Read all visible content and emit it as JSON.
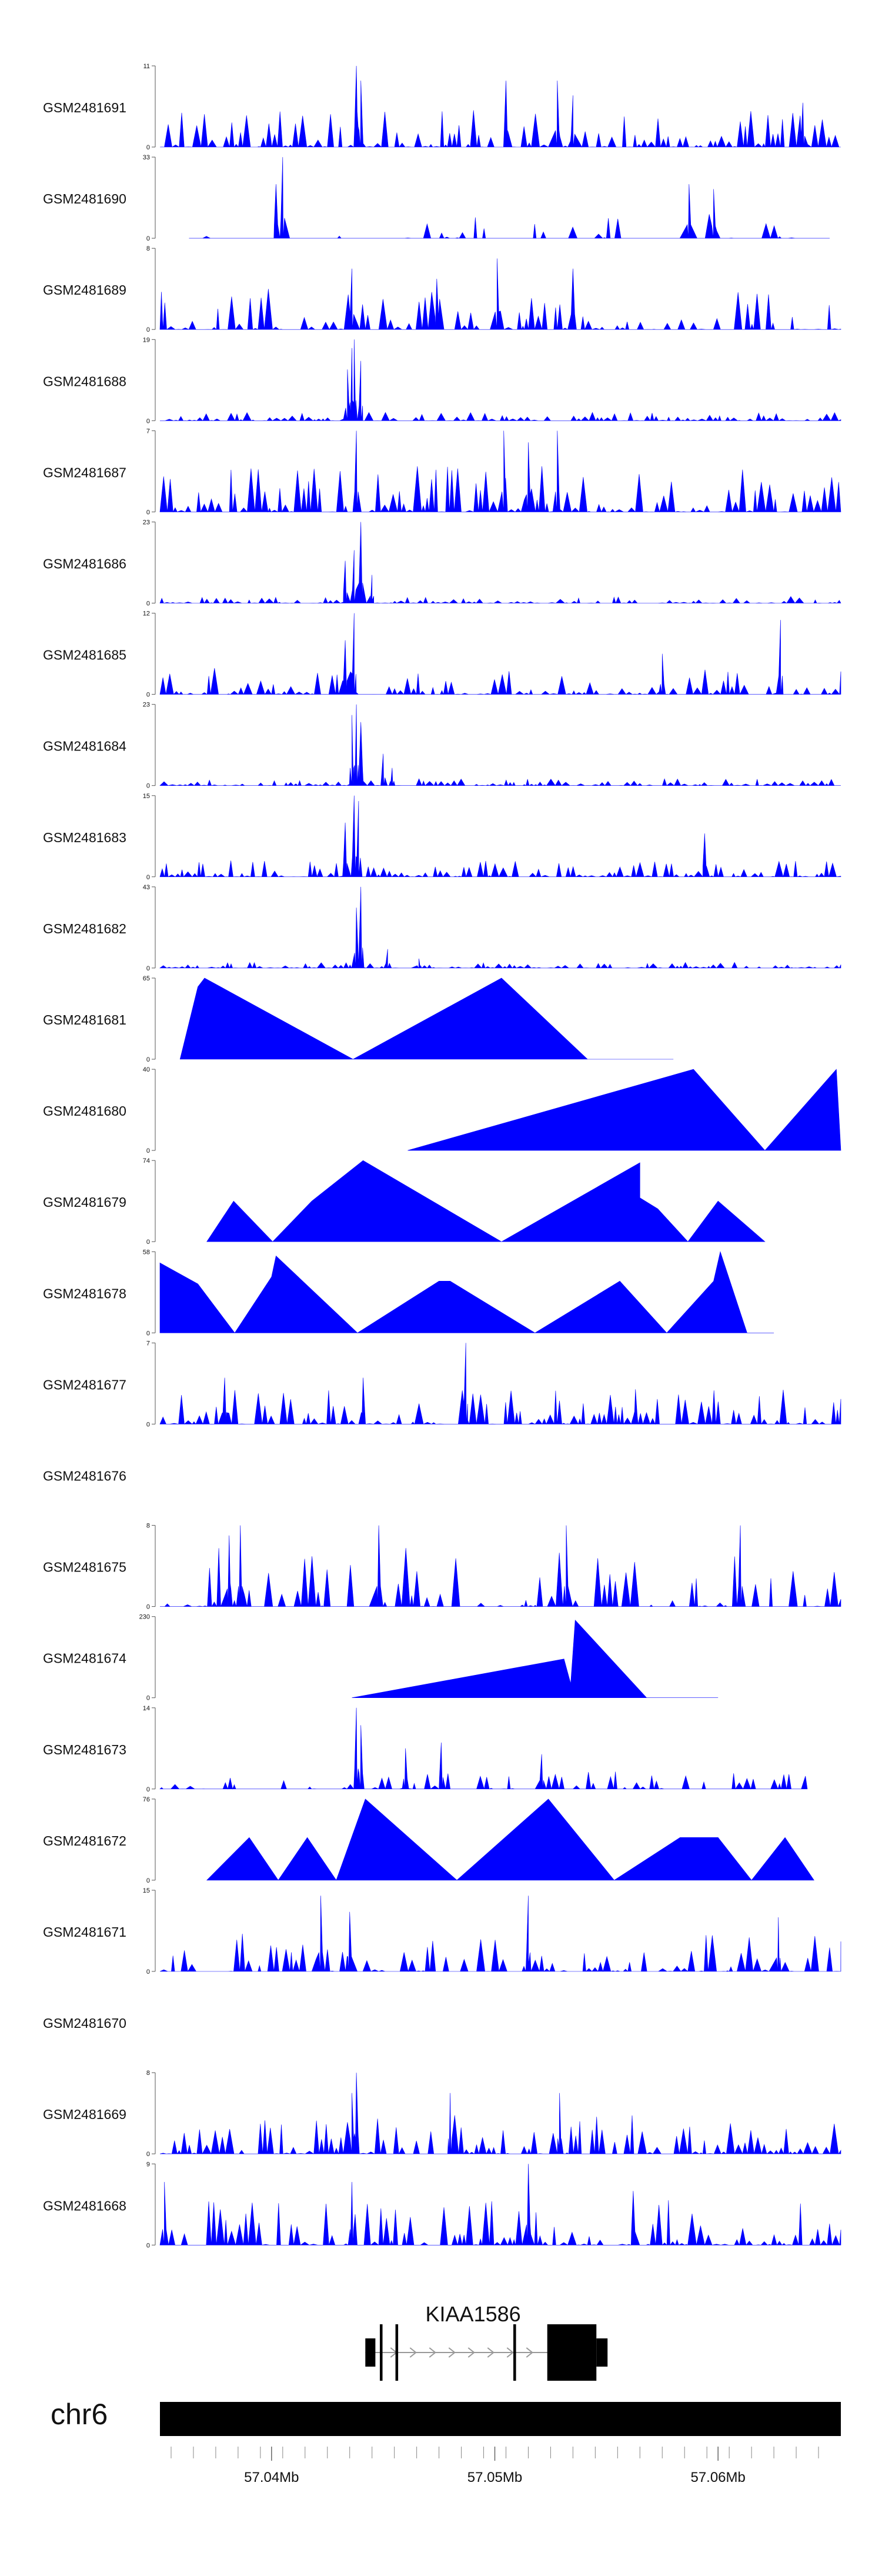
{
  "chart_data": {
    "type": "area",
    "title": "",
    "track_color": "#0000ff",
    "x_axis": {
      "chromosome": "chr6",
      "range_mb": [
        57.035,
        57.0655
      ],
      "ticks_mb": [
        57.0355,
        57.0365,
        57.0375,
        57.0385,
        57.0395,
        57.0405,
        57.0415,
        57.0425,
        57.0435,
        57.0445,
        57.0455,
        57.0465,
        57.0475,
        57.0485,
        57.0495,
        57.0505,
        57.0515,
        57.0525,
        57.0535,
        57.0545,
        57.0555,
        57.0565,
        57.0575,
        57.0585,
        57.0595,
        57.0605,
        57.0615,
        57.0625,
        57.0635,
        57.0645
      ],
      "tick_labels": [
        {
          "mb": 57.04,
          "text": "57.04Mb"
        },
        {
          "mb": 57.05,
          "text": "57.05Mb"
        },
        {
          "mb": 57.06,
          "text": "57.06Mb"
        }
      ]
    },
    "gene": {
      "name": "KIAA1586",
      "strand": "+",
      "start_mb": 57.0442,
      "end_mb": 57.0528,
      "exons": [
        {
          "start": 57.0442,
          "end": 57.04465,
          "tall": false
        },
        {
          "start": 57.04485,
          "end": 57.04497,
          "tall": true
        },
        {
          "start": 57.04555,
          "end": 57.04567,
          "tall": true
        },
        {
          "start": 57.05083,
          "end": 57.05095,
          "tall": true
        },
        {
          "start": 57.05235,
          "end": 57.05455,
          "tall": true
        },
        {
          "start": 57.05455,
          "end": 57.05505,
          "tall": false
        }
      ]
    },
    "tracks": [
      {
        "name": "GSM2481691",
        "ymax": 11,
        "peaks": [
          [
            57.0438,
            11
          ],
          [
            57.044,
            9
          ],
          [
            57.0505,
            9
          ],
          [
            57.0528,
            9
          ],
          [
            57.0535,
            7
          ],
          [
            57.0638,
            6
          ]
        ],
        "noise": 5,
        "density": 0.9,
        "start": 57.035,
        "end": 57.0655
      },
      {
        "name": "GSM2481690",
        "ymax": 33,
        "peaks": [
          [
            57.0405,
            33
          ],
          [
            57.0402,
            22
          ],
          [
            57.0587,
            22
          ],
          [
            57.0598,
            20
          ]
        ],
        "noise": 12,
        "density": 0.22,
        "start": 57.0363,
        "end": 57.065
      },
      {
        "name": "GSM2481689",
        "ymax": 8,
        "peaks": [
          [
            57.0436,
            6
          ],
          [
            57.0501,
            7
          ],
          [
            57.0535,
            6
          ],
          [
            57.0474,
            5
          ]
        ],
        "noise": 4,
        "density": 0.75,
        "start": 57.035,
        "end": 57.0655
      },
      {
        "name": "GSM2481688",
        "ymax": 19,
        "peaks": [
          [
            57.0437,
            19
          ],
          [
            57.0436,
            17
          ],
          [
            57.044,
            14
          ],
          [
            57.0434,
            12
          ]
        ],
        "noise": 2,
        "density": 0.9,
        "start": 57.035,
        "end": 57.0655
      },
      {
        "name": "GSM2481687",
        "ymax": 7,
        "peaks": [
          [
            57.0438,
            7
          ],
          [
            57.0504,
            7
          ],
          [
            57.0528,
            7
          ],
          [
            57.0515,
            6
          ]
        ],
        "noise": 4,
        "density": 0.9,
        "start": 57.035,
        "end": 57.0655
      },
      {
        "name": "GSM2481686",
        "ymax": 23,
        "peaks": [
          [
            57.044,
            23
          ],
          [
            57.0437,
            15
          ],
          [
            57.0433,
            12
          ],
          [
            57.0445,
            8
          ]
        ],
        "noise": 2,
        "density": 0.9,
        "start": 57.035,
        "end": 57.0655
      },
      {
        "name": "GSM2481685",
        "ymax": 12,
        "peaks": [
          [
            57.0437,
            12
          ],
          [
            57.0433,
            8
          ],
          [
            57.0628,
            11
          ],
          [
            57.0575,
            6
          ]
        ],
        "noise": 4,
        "density": 0.9,
        "start": 57.035,
        "end": 57.0655
      },
      {
        "name": "GSM2481684",
        "ymax": 23,
        "peaks": [
          [
            57.0438,
            23
          ],
          [
            57.0436,
            20
          ],
          [
            57.044,
            18
          ],
          [
            57.045,
            9
          ],
          [
            57.0454,
            5
          ]
        ],
        "noise": 2,
        "density": 0.9,
        "start": 57.035,
        "end": 57.0655
      },
      {
        "name": "GSM2481683",
        "ymax": 15,
        "peaks": [
          [
            57.0437,
            15
          ],
          [
            57.0439,
            14
          ],
          [
            57.0433,
            10
          ],
          [
            57.0594,
            8
          ]
        ],
        "noise": 3,
        "density": 0.9,
        "start": 57.035,
        "end": 57.0655
      },
      {
        "name": "GSM2481682",
        "ymax": 43,
        "peaks": [
          [
            57.044,
            43
          ],
          [
            57.0438,
            32
          ],
          [
            57.0452,
            10
          ],
          [
            57.0466,
            5
          ]
        ],
        "noise": 3,
        "density": 0.9,
        "start": 57.035,
        "end": 57.0655
      },
      {
        "name": "GSM2481681",
        "ymax": 65,
        "peaks": [
          [
            57.037,
            65
          ],
          [
            57.0367,
            58
          ],
          [
            57.0503,
            65
          ]
        ],
        "noise": 0,
        "density": 0,
        "start": 57.0359,
        "end": 57.058
      },
      {
        "name": "GSM2481680",
        "ymax": 40,
        "peaks": [
          [
            57.0589,
            40
          ],
          [
            57.0653,
            40
          ]
        ],
        "noise": 0,
        "density": 0,
        "start": 57.0461,
        "end": 57.0655
      },
      {
        "name": "GSM2481679",
        "ymax": 74,
        "peaks": [
          [
            57.0383,
            37
          ],
          [
            57.0418,
            37
          ],
          [
            57.0441,
            74
          ],
          [
            57.0565,
            72
          ],
          [
            57.0565,
            40
          ],
          [
            57.0573,
            30
          ],
          [
            57.06,
            37
          ]
        ],
        "noise": 0,
        "density": 0,
        "start": 57.0371,
        "end": 57.0621
      },
      {
        "name": "GSM2481678",
        "ymax": 58,
        "peaks": [
          [
            57.035,
            50
          ],
          [
            57.0367,
            35
          ],
          [
            57.0402,
            55
          ],
          [
            57.04,
            40
          ],
          [
            57.0475,
            37
          ],
          [
            57.048,
            37
          ],
          [
            57.0556,
            37
          ],
          [
            57.0598,
            37
          ],
          [
            57.0601,
            58
          ]
        ],
        "noise": 0,
        "density": 0,
        "start": 57.035,
        "end": 57.0625
      },
      {
        "name": "GSM2481677",
        "ymax": 7,
        "peaks": [
          [
            57.0487,
            7
          ],
          [
            57.0379,
            4
          ],
          [
            57.0441,
            4
          ],
          [
            57.0563,
            3
          ]
        ],
        "noise": 3,
        "density": 0.9,
        "start": 57.035,
        "end": 57.0655
      },
      {
        "name": "GSM2481676",
        "ymax": null,
        "peaks": [],
        "noise": 0,
        "density": 0,
        "start": 57.035,
        "end": 57.0655
      },
      {
        "name": "GSM2481675",
        "ymax": 8,
        "peaks": [
          [
            57.0386,
            8
          ],
          [
            57.0448,
            8
          ],
          [
            57.0532,
            8
          ],
          [
            57.061,
            8
          ],
          [
            57.0381,
            7
          ]
        ],
        "noise": 6,
        "density": 0.5,
        "start": 57.035,
        "end": 57.0655
      },
      {
        "name": "GSM2481674",
        "ymax": 230,
        "peaks": [
          [
            57.0531,
            110
          ],
          [
            57.0534,
            40
          ],
          [
            57.0536,
            220
          ]
        ],
        "noise": 0,
        "density": 0,
        "start": 57.0436,
        "end": 57.06
      },
      {
        "name": "GSM2481673",
        "ymax": 14,
        "peaks": [
          [
            57.0438,
            14
          ],
          [
            57.044,
            11
          ],
          [
            57.046,
            7
          ],
          [
            57.0476,
            8
          ],
          [
            57.0521,
            6
          ]
        ],
        "noise": 3,
        "density": 0.55,
        "start": 57.035,
        "end": 57.064
      },
      {
        "name": "GSM2481672",
        "ymax": 76,
        "peaks": [
          [
            57.0442,
            76
          ],
          [
            57.0524,
            76
          ],
          [
            57.039,
            40
          ],
          [
            57.0416,
            40
          ],
          [
            57.0583,
            40
          ],
          [
            57.06,
            40
          ],
          [
            57.063,
            40
          ]
        ],
        "noise": 0,
        "density": 0,
        "start": 57.0371,
        "end": 57.0643
      },
      {
        "name": "GSM2481671",
        "ymax": 15,
        "peaks": [
          [
            57.0422,
            14
          ],
          [
            57.0515,
            14
          ],
          [
            57.0435,
            11
          ],
          [
            57.0627,
            10
          ]
        ],
        "noise": 7,
        "density": 0.65,
        "start": 57.035,
        "end": 57.0655
      },
      {
        "name": "GSM2481670",
        "ymax": null,
        "peaks": [],
        "noise": 0,
        "density": 0,
        "start": 57.035,
        "end": 57.0655
      },
      {
        "name": "GSM2481669",
        "ymax": 8,
        "peaks": [
          [
            57.0438,
            8
          ],
          [
            57.0436,
            6
          ],
          [
            57.048,
            6
          ],
          [
            57.0529,
            6
          ]
        ],
        "noise": 4,
        "density": 0.85,
        "start": 57.035,
        "end": 57.0655
      },
      {
        "name": "GSM2481668",
        "ymax": 9,
        "peaks": [
          [
            57.0436,
            7
          ],
          [
            57.0515,
            9
          ],
          [
            57.0352,
            7
          ],
          [
            57.0562,
            6
          ]
        ],
        "noise": 5,
        "density": 0.8,
        "start": 57.035,
        "end": 57.0655
      }
    ]
  }
}
